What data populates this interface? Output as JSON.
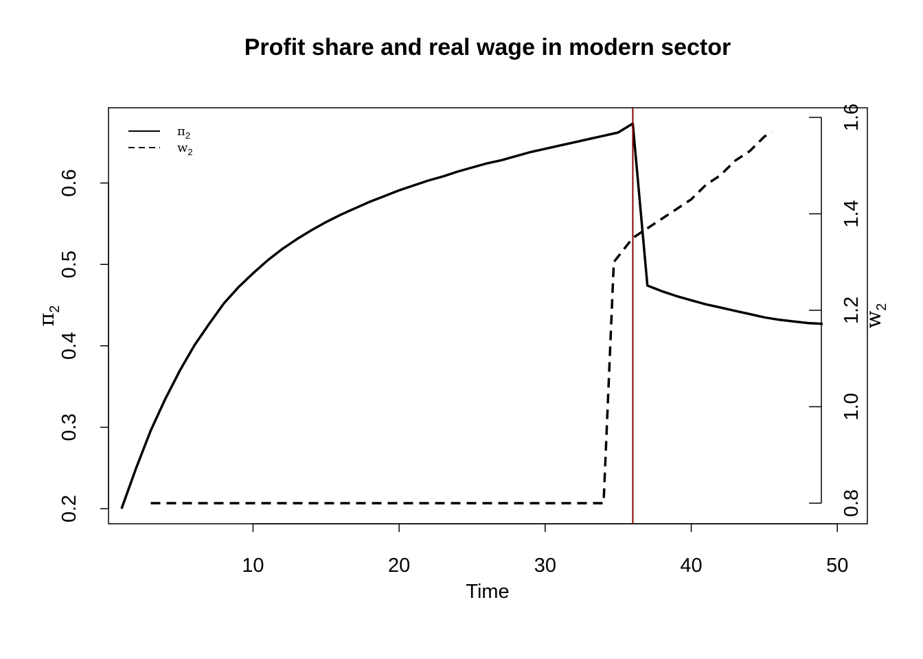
{
  "chart_data": {
    "type": "line",
    "title": "Profit share and real wage in modern sector",
    "xlabel": "Time",
    "ylabel_left": {
      "symbol": "π",
      "subscript": "2"
    },
    "ylabel_right": {
      "symbol": "w",
      "subscript": "2"
    },
    "xlim": [
      1,
      50
    ],
    "ylim_left": [
      0.2,
      0.673
    ],
    "ylim_right": [
      0.8,
      1.6
    ],
    "x_ticks": [
      10,
      20,
      30,
      40,
      50
    ],
    "y_ticks_left": [
      0.2,
      0.3,
      0.4,
      0.5,
      0.6
    ],
    "y_ticks_right": [
      0.8,
      1.0,
      1.2,
      1.4,
      1.6
    ],
    "grid": false,
    "legend_position": "top-left",
    "vline": {
      "x": 36,
      "color": "#8b0000"
    },
    "series": [
      {
        "name": "π",
        "name_sub": "2",
        "axis": "left",
        "style": "solid",
        "color": "#000000",
        "points": [
          [
            1,
            0.2
          ],
          [
            2,
            0.25
          ],
          [
            3,
            0.296
          ],
          [
            4,
            0.335
          ],
          [
            5,
            0.37
          ],
          [
            6,
            0.401
          ],
          [
            7,
            0.427
          ],
          [
            8,
            0.452
          ],
          [
            9,
            0.472
          ],
          [
            10,
            0.489
          ],
          [
            11,
            0.505
          ],
          [
            12,
            0.519
          ],
          [
            13,
            0.531
          ],
          [
            14,
            0.542
          ],
          [
            15,
            0.552
          ],
          [
            16,
            0.561
          ],
          [
            17,
            0.569
          ],
          [
            18,
            0.577
          ],
          [
            19,
            0.584
          ],
          [
            20,
            0.591
          ],
          [
            21,
            0.597
          ],
          [
            22,
            0.603
          ],
          [
            23,
            0.608
          ],
          [
            24,
            0.614
          ],
          [
            25,
            0.619
          ],
          [
            26,
            0.624
          ],
          [
            27,
            0.628
          ],
          [
            28,
            0.633
          ],
          [
            29,
            0.638
          ],
          [
            30,
            0.642
          ],
          [
            31,
            0.646
          ],
          [
            32,
            0.65
          ],
          [
            33,
            0.654
          ],
          [
            34,
            0.658
          ],
          [
            35,
            0.662
          ],
          [
            36,
            0.673
          ],
          [
            37,
            0.474
          ],
          [
            38,
            0.467
          ],
          [
            39,
            0.461
          ],
          [
            40,
            0.456
          ],
          [
            41,
            0.451
          ],
          [
            42,
            0.447
          ],
          [
            43,
            0.443
          ],
          [
            44,
            0.439
          ],
          [
            45,
            0.435
          ],
          [
            46,
            0.432
          ],
          [
            47,
            0.43
          ],
          [
            48,
            0.428
          ],
          [
            49,
            0.427
          ]
        ]
      },
      {
        "name": "w",
        "name_sub": "2",
        "axis": "right",
        "style": "dashed",
        "color": "#000000",
        "points": [
          [
            3,
            0.8
          ],
          [
            34,
            0.8
          ],
          [
            34.7,
            1.3
          ],
          [
            36,
            1.35
          ],
          [
            37,
            1.37
          ],
          [
            38,
            1.39
          ],
          [
            39,
            1.41
          ],
          [
            40,
            1.43
          ],
          [
            41,
            1.46
          ],
          [
            42,
            1.48
          ],
          [
            43,
            1.51
          ],
          [
            44,
            1.53
          ],
          [
            45,
            1.56
          ],
          [
            45.5,
            1.57
          ]
        ]
      }
    ]
  }
}
